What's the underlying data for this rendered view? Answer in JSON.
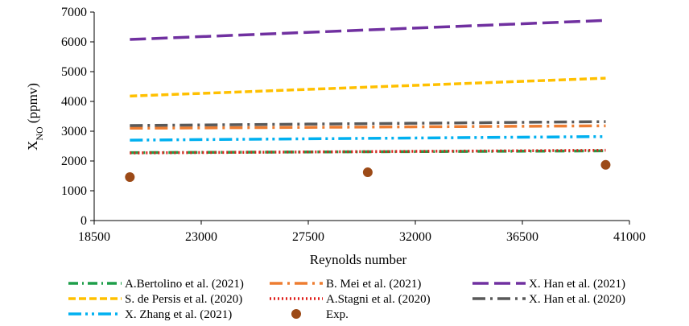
{
  "chart_data": {
    "type": "line",
    "xlabel": "Reynolds number",
    "ylabel": "X",
    "ylabel_sub": "NO",
    "ylabel_unit": " (ppmv)",
    "xlim": [
      18500,
      41000
    ],
    "ylim": [
      0,
      7000
    ],
    "xticks": [
      18500,
      23000,
      27500,
      32000,
      36500,
      41000
    ],
    "yticks": [
      0,
      1000,
      2000,
      3000,
      4000,
      5000,
      6000,
      7000
    ],
    "grid": false,
    "legend_position": "bottom",
    "series": [
      {
        "name": "A.Bertolino et al. (2021)",
        "color": "#1e9e4a",
        "style": "dash-dot",
        "x": [
          20000,
          40000
        ],
        "y": [
          2280,
          2340
        ]
      },
      {
        "name": "B. Mei et al. (2021)",
        "color": "#ed7d31",
        "style": "long-dash-dot",
        "x": [
          20000,
          40000
        ],
        "y": [
          3100,
          3180
        ]
      },
      {
        "name": "X. Han et al. (2021)",
        "color": "#7030a0",
        "style": "long-dash",
        "x": [
          20000,
          40000
        ],
        "y": [
          6080,
          6720
        ]
      },
      {
        "name": "S. de Persis et al. (2020)",
        "color": "#ffc000",
        "style": "dash",
        "x": [
          20000,
          40000
        ],
        "y": [
          4180,
          4780
        ]
      },
      {
        "name": "A.Stagni et al. (2020)",
        "color": "#e0201b",
        "style": "dot",
        "x": [
          20000,
          40000
        ],
        "y": [
          2270,
          2360
        ]
      },
      {
        "name": "X. Han et al. (2020)",
        "color": "#595959",
        "style": "long-dash-dot",
        "x": [
          20000,
          40000
        ],
        "y": [
          3190,
          3320
        ]
      },
      {
        "name": "X. Zhang et al. (2021)",
        "color": "#00b0f0",
        "style": "long-dash-dot-dot",
        "x": [
          20000,
          40000
        ],
        "y": [
          2700,
          2820
        ]
      },
      {
        "name": "Exp.",
        "color": "#9c4a17",
        "style": "marker",
        "x": [
          20000,
          30000,
          40000
        ],
        "y": [
          1460,
          1620,
          1870
        ]
      }
    ]
  }
}
